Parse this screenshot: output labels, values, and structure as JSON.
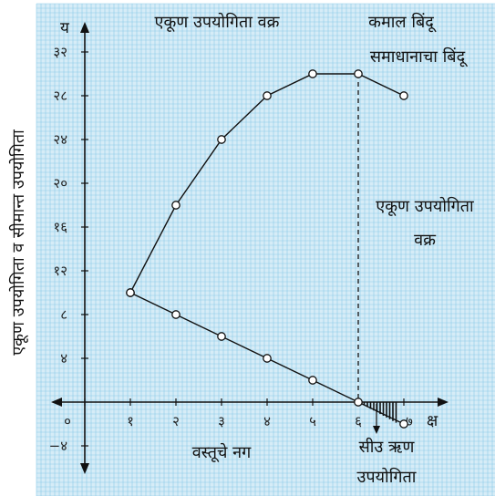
{
  "colors": {
    "background": "#ffffff",
    "grid_fill": "#d6ecf7",
    "grid_line": "#8ccbe8",
    "ink": "#111111"
  },
  "chart_data": {
    "type": "line",
    "xlim": [
      0,
      7
    ],
    "ylim": [
      -4,
      32
    ],
    "grid": true,
    "x_ticks": [
      {
        "value": 0,
        "label": "०"
      },
      {
        "value": 1,
        "label": "१"
      },
      {
        "value": 2,
        "label": "२"
      },
      {
        "value": 3,
        "label": "३"
      },
      {
        "value": 4,
        "label": "४"
      },
      {
        "value": 5,
        "label": "५"
      },
      {
        "value": 6,
        "label": "६"
      },
      {
        "value": 7,
        "label": "७"
      }
    ],
    "y_ticks": [
      {
        "value": 32,
        "label": "३२"
      },
      {
        "value": 28,
        "label": "२८"
      },
      {
        "value": 24,
        "label": "२४"
      },
      {
        "value": 20,
        "label": "२०"
      },
      {
        "value": 16,
        "label": "१६"
      },
      {
        "value": 12,
        "label": "१२"
      },
      {
        "value": 8,
        "label": "८"
      },
      {
        "value": 4,
        "label": "४"
      },
      {
        "value": -4,
        "label": "−४"
      }
    ],
    "x_axis_letter": "क्ष",
    "y_axis_letter": "य",
    "xlabel": "वस्तूचे नग",
    "ylabel": "एकूण उपयोगिता व सीमान्त उपयोगिता",
    "series": [
      {
        "x": [
          1,
          2,
          3,
          4,
          5,
          6,
          7
        ],
        "y": [
          10,
          18,
          24,
          28,
          30,
          30,
          28
        ]
      },
      {
        "x": [
          1,
          2,
          3,
          4,
          5,
          6,
          7
        ],
        "y": [
          10,
          8,
          6,
          4,
          2,
          0,
          -2
        ]
      }
    ],
    "annotations": {
      "total_curve_title": "एकूण उपयोगिता वक्र",
      "max_point_line1": "कमाल बिंदू",
      "max_point_line2": "समाधानाचा बिंदू",
      "total_curve_right_line1": "एकूण उपयोगिता",
      "total_curve_right_line2": "वक्र",
      "negative_line1": "सीउ ऋण",
      "negative_line2": "उपयोगिता"
    }
  }
}
